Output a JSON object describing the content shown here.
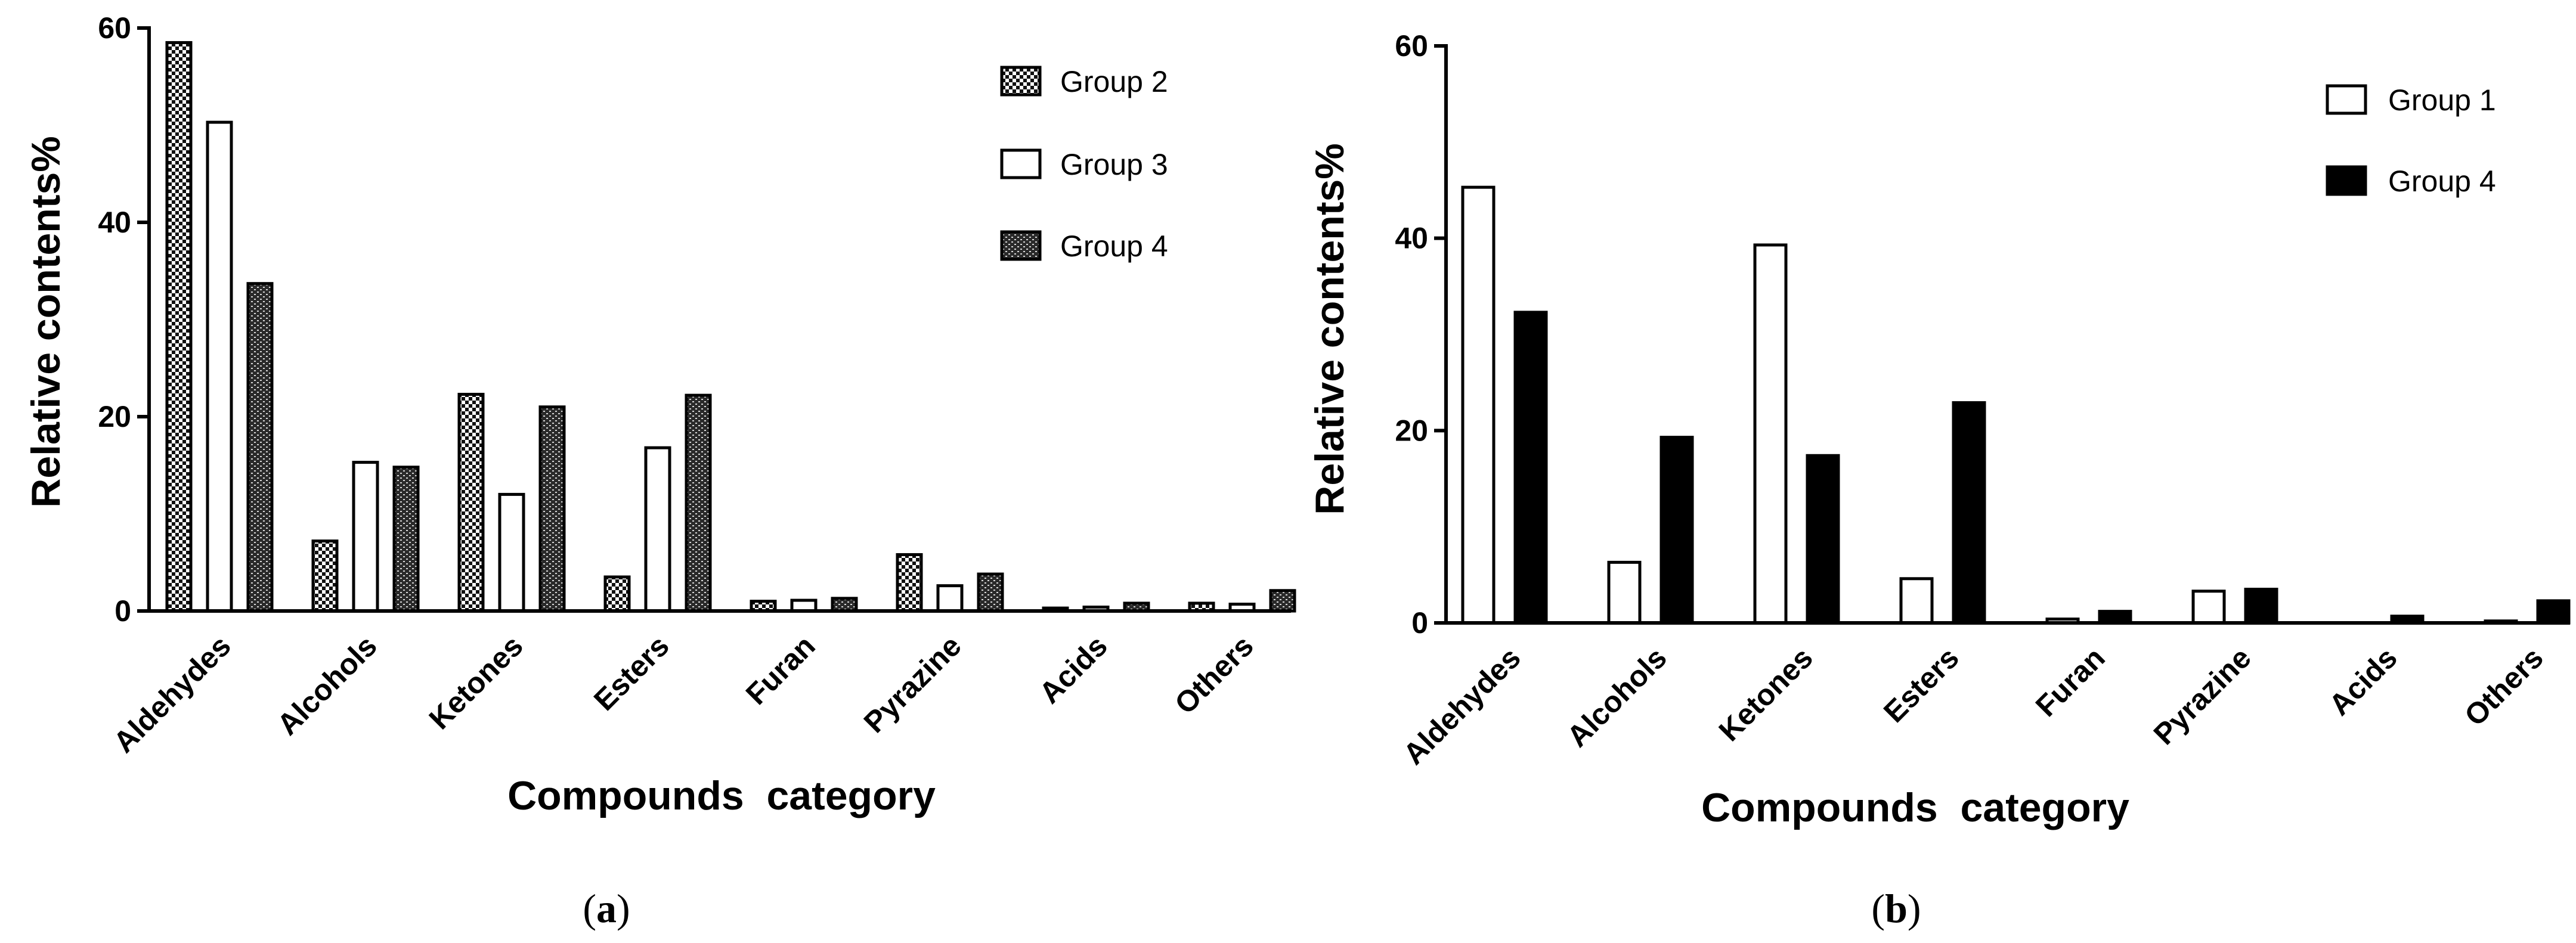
{
  "chart_data": [
    {
      "panel_label": "a",
      "type": "bar",
      "xlabel": "Compounds  category",
      "ylabel": "Relative contents%",
      "ylim": [
        0,
        60
      ],
      "yticks": [
        "0",
        "20",
        "40",
        "60"
      ],
      "categories": [
        "Aldehydes",
        "Alcohols",
        "Ketones",
        "Esters",
        "Furan",
        "Pyrazine",
        "Acids",
        "Others"
      ],
      "series": [
        {
          "name": "Group 2",
          "pattern": "checker",
          "values": [
            58.5,
            7.2,
            22.3,
            3.5,
            1.0,
            5.8,
            0.3,
            0.8
          ]
        },
        {
          "name": "Group 3",
          "pattern": "white",
          "values": [
            50.3,
            15.3,
            12.0,
            16.8,
            1.1,
            2.6,
            0.4,
            0.7
          ]
        },
        {
          "name": "Group 4",
          "pattern": "brick",
          "values": [
            33.7,
            14.8,
            21.0,
            22.2,
            1.3,
            3.8,
            0.8,
            2.1
          ]
        }
      ]
    },
    {
      "panel_label": "b",
      "type": "bar",
      "xlabel": "Compounds  category",
      "ylabel": "Relative contents%",
      "ylim": [
        0,
        60
      ],
      "yticks": [
        "0",
        "20",
        "40",
        "60"
      ],
      "categories": [
        "Aldehydes",
        "Alcohols",
        "Ketones",
        "Esters",
        "Furan",
        "Pyrazine",
        "Acids",
        "Others"
      ],
      "series": [
        {
          "name": "Group 1",
          "pattern": "white",
          "values": [
            45.3,
            6.3,
            39.3,
            4.6,
            0.4,
            3.3,
            0.0,
            0.2
          ]
        },
        {
          "name": "Group 4",
          "pattern": "black",
          "values": [
            32.3,
            19.3,
            17.4,
            22.9,
            1.2,
            3.5,
            0.7,
            2.3
          ]
        }
      ]
    }
  ]
}
